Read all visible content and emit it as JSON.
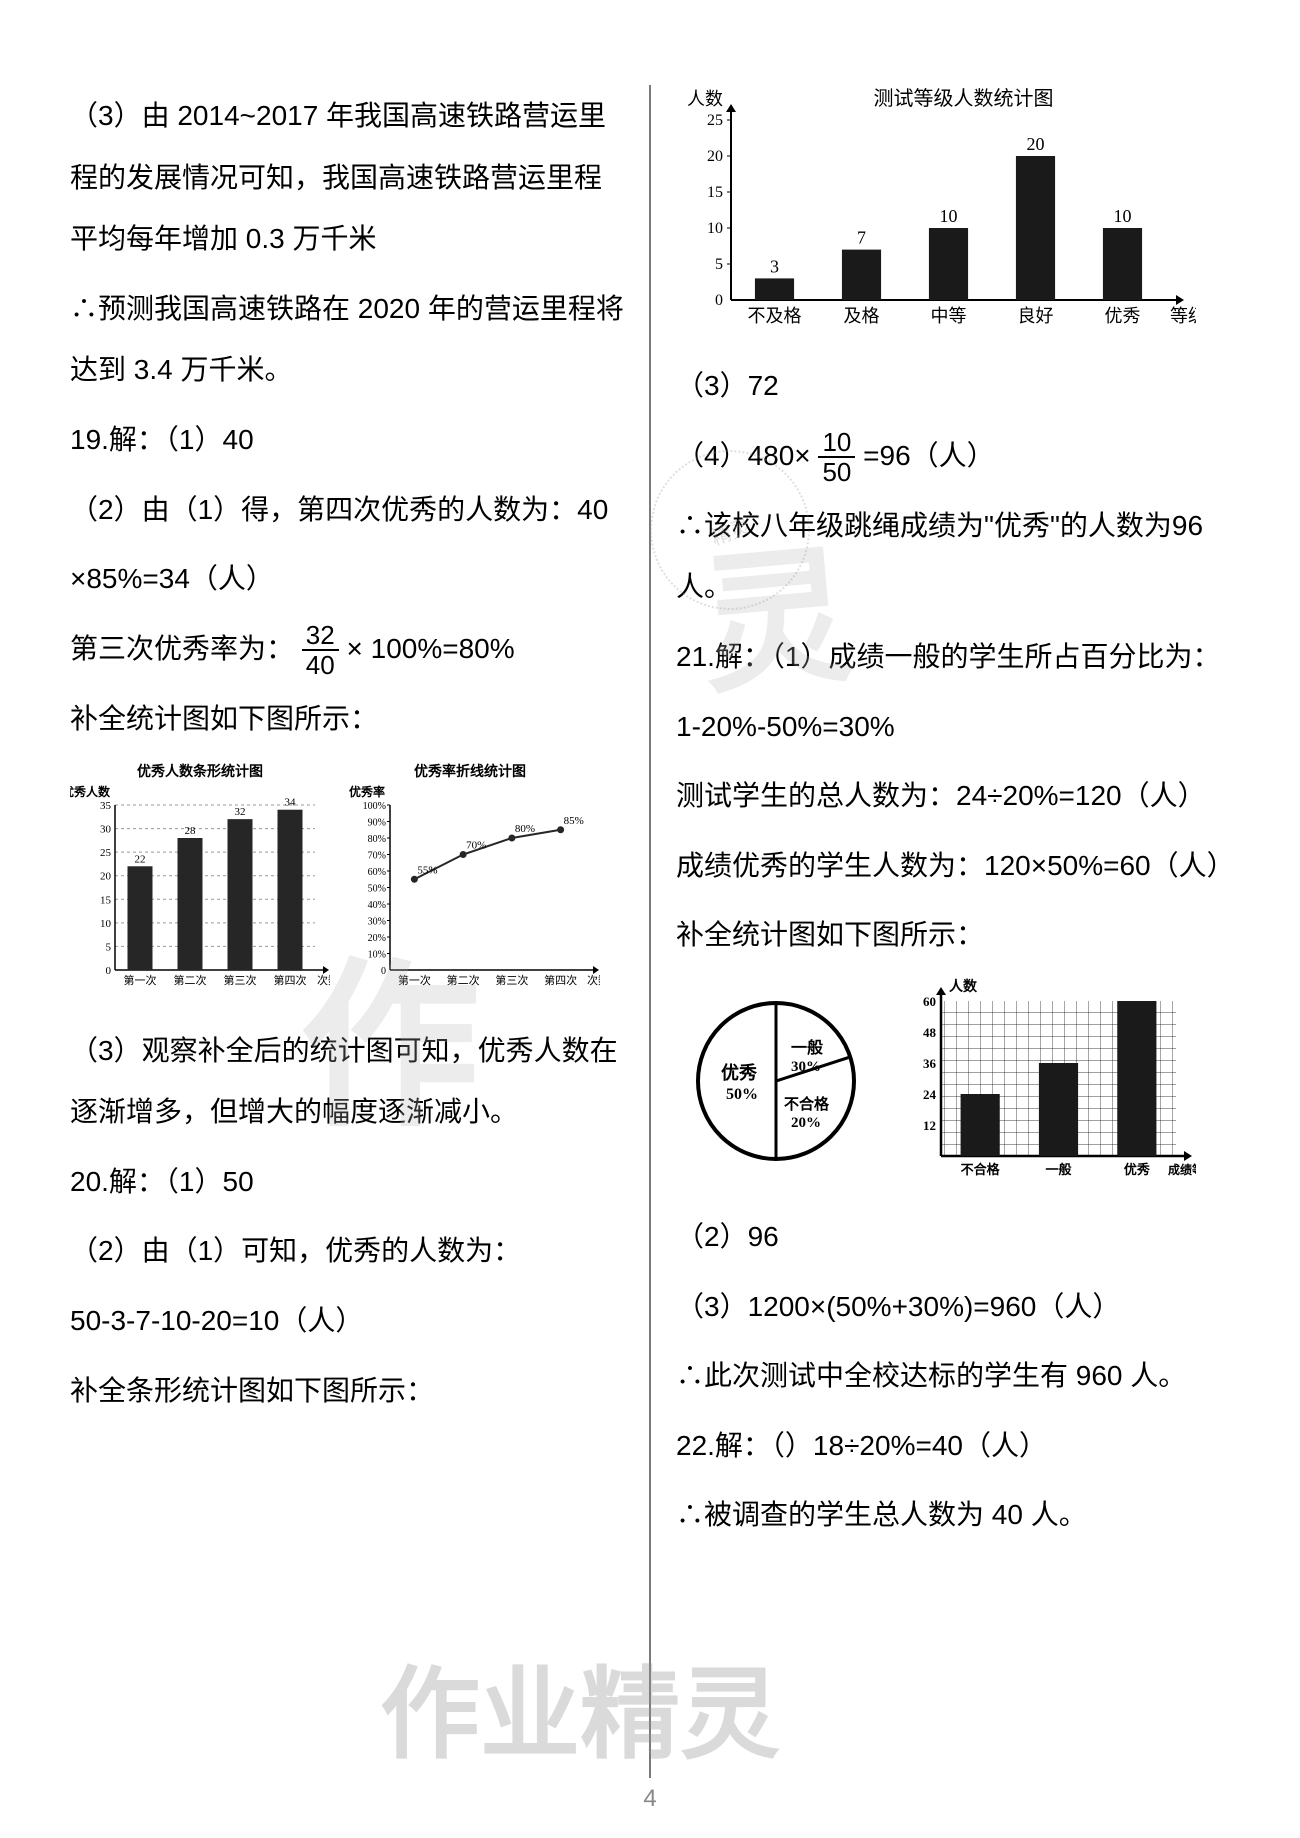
{
  "left_col": {
    "p1": "（3）由 2014~2017 年我国高速铁路营运里程的发展情况可知，我国高速铁路营运里程平均每年增加 0.3 万千米",
    "p2": "∴预测我国高速铁路在 2020 年的营运里程将达到 3.4 万千米。",
    "p3": "19.解：（1）40",
    "p4a": "（2）由（1）得，第四次优秀的人数为：40",
    "p4b": "×85%=34（人）",
    "p5_prefix": "第三次优秀率为：",
    "p5_frac_num": "32",
    "p5_frac_den": "40",
    "p5_suffix": " × 100%=80%",
    "p6": "补全统计图如下图所示：",
    "bar_chart": {
      "title": "优秀人数条形统计图",
      "ylabel": "优秀人数",
      "categories": [
        "第一次",
        "第二次",
        "第三次",
        "第四次"
      ],
      "values": [
        22,
        28,
        32,
        34
      ],
      "value_labels": [
        "22",
        "28",
        "32",
        "34"
      ],
      "ymax": 35,
      "ytick": 5,
      "bar_color": "#262626",
      "grid_color": "#999999",
      "background": "#ffffff",
      "dash": "3,3",
      "xlabel_right": "次数"
    },
    "line_chart": {
      "title": "优秀率折线统计图",
      "ylabel": "优秀率",
      "categories": [
        "第一次",
        "第二次",
        "第三次",
        "第四次"
      ],
      "values": [
        55,
        70,
        80,
        85
      ],
      "value_labels": [
        "55%",
        "70%",
        "80%",
        "85%"
      ],
      "ymax": 100,
      "ytick": 10,
      "yticklabels": [
        "10%",
        "20%",
        "30%",
        "40%",
        "50%",
        "60%",
        "70%",
        "80%",
        "90%",
        "100%"
      ],
      "line_color": "#262626",
      "grid_color": "#999999",
      "background": "#ffffff",
      "xlabel_right": "次数"
    },
    "p7": "（3）观察补全后的统计图可知，优秀人数在逐渐增多，但增大的幅度逐渐减小。",
    "p8": "20.解：（1）50",
    "p9": "（2）由（1）可知，优秀的人数为：",
    "p10": "50-3-7-10-20=10（人）",
    "p11": "补全条形统计图如下图所示："
  },
  "right_col": {
    "top_chart": {
      "title": "测试等级人数统计图",
      "ylabel": "人数",
      "categories": [
        "不及格",
        "及格",
        "中等",
        "良好",
        "优秀"
      ],
      "values": [
        3,
        7,
        10,
        20,
        10
      ],
      "value_labels": [
        "3",
        "7",
        "10",
        "20",
        "10"
      ],
      "ymax": 25,
      "ytick": 5,
      "bar_color": "#1a1a1a",
      "axis_color": "#000000",
      "background": "#ffffff",
      "xlabel_right": "等级"
    },
    "p1": "（3）72",
    "p2_prefix": "（4）480×",
    "p2_frac_num": "10",
    "p2_frac_den": "50",
    "p2_suffix": "=96（人）",
    "p3": "∴该校八年级跳绳成绩为\"优秀\"的人数为96 人。",
    "p4": "21.解：（1）成绩一般的学生所占百分比为：",
    "p5": "1-20%-50%=30%",
    "p6": "测试学生的总人数为：24÷20%=120（人）",
    "p7": "成绩优秀的学生人数为：120×50%=60（人）",
    "p8": "补全统计图如下图所示：",
    "pie_chart": {
      "slices": [
        {
          "label": "优秀",
          "pct": 50,
          "start": 90,
          "end": 270,
          "color": "#ffffff"
        },
        {
          "label": "一般",
          "pct": 30,
          "start": 270,
          "end": 378,
          "color": "#ffffff"
        },
        {
          "label": "不合格",
          "pct": 20,
          "start": 18,
          "end": 90,
          "color": "#ffffff"
        }
      ],
      "border_color": "#000000",
      "labels": {
        "left": "优秀\n50%",
        "topright": "一般\n30%",
        "botright": "不合格\n20%"
      }
    },
    "bar_chart2": {
      "ylabel": "人数",
      "categories": [
        "不合格",
        "一般",
        "优秀"
      ],
      "values": [
        24,
        36,
        60
      ],
      "ymax": 60,
      "ytick": 12,
      "yticklabels": [
        "12",
        "24",
        "36",
        "48",
        "60"
      ],
      "bar_color": "#1a1a1a",
      "grid_pattern": true,
      "grid_color": "#000000",
      "xlabel_right": "成绩等级"
    },
    "p9": "（2）96",
    "p10": "（3）1200×(50%+30%)=960（人）",
    "p11": "∴此次测试中全校达标的学生有 960 人。",
    "p12": "22.解：（）18÷20%=40（人）",
    "p13": "∴被调查的学生总人数为 40 人。"
  },
  "watermarks": {
    "wm1": "灵",
    "wm2": "作",
    "wm3": "作业精灵",
    "stamp": "精灵"
  },
  "pagenum": "4"
}
